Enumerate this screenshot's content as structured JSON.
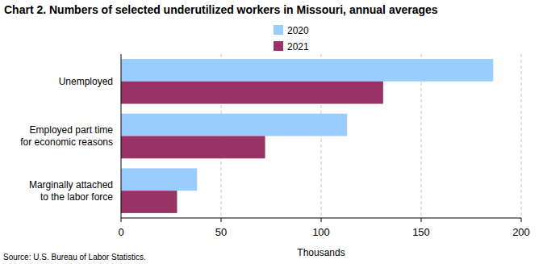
{
  "chart_data": {
    "type": "bar",
    "title": "Chart 2. Numbers of selected underutilized workers in Missouri, annual averages",
    "orientation": "horizontal",
    "categories": [
      "Unemployed",
      "Employed part time\nfor economic reasons",
      "Marginally attached\nto the labor force"
    ],
    "series": [
      {
        "name": "2020",
        "color": "#99ccff",
        "values": [
          186,
          113,
          38
        ]
      },
      {
        "name": "2021",
        "color": "#993366",
        "values": [
          131,
          72,
          28
        ]
      }
    ],
    "x_label": "Thousands",
    "xlim": [
      0,
      200
    ],
    "xticks": [
      0,
      50,
      100,
      150,
      200
    ],
    "grid": true,
    "legend": "top",
    "source": "Source: U.S. Bureau of Labor Statistics."
  }
}
